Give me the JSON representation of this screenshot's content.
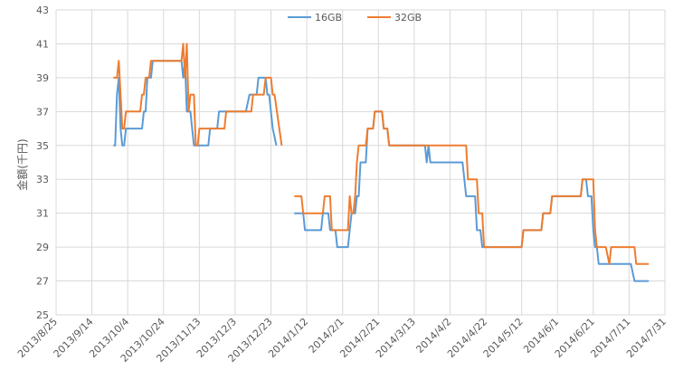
{
  "chart_data": {
    "type": "line",
    "title": "",
    "xlabel": "",
    "ylabel": "金額(千円)",
    "ylim": [
      25,
      43
    ],
    "yticks": [
      25,
      27,
      29,
      31,
      33,
      35,
      37,
      39,
      41,
      43
    ],
    "xlim": [
      "2013-08-25",
      "2014-07-31"
    ],
    "xtick_labels": [
      "2013/8/25",
      "2013/9/14",
      "2013/10/4",
      "2013/10/24",
      "2013/11/13",
      "2013/12/3",
      "2013/12/23",
      "2014/1/12",
      "2014/2/1",
      "2014/2/21",
      "2014/3/13",
      "2014/4/2",
      "2014/4/22",
      "2014/5/12",
      "2014/6/1",
      "2014/6/21",
      "2014/7/11",
      "2014/7/31"
    ],
    "xtick_dates": [
      "2013-08-25",
      "2013-09-14",
      "2013-10-04",
      "2013-10-24",
      "2013-11-13",
      "2013-12-03",
      "2013-12-23",
      "2014-01-12",
      "2014-02-01",
      "2014-02-21",
      "2014-03-13",
      "2014-04-02",
      "2014-04-22",
      "2014-05-12",
      "2014-06-01",
      "2014-06-21",
      "2014-07-11",
      "2014-07-31"
    ],
    "grid": true,
    "legend_position": "top-center",
    "series": [
      {
        "name": "16GB",
        "color": "#5B9BD5",
        "segments": [
          [
            [
              "2013-09-26",
              35
            ],
            [
              "2013-09-27",
              35
            ],
            [
              "2013-09-28",
              38
            ],
            [
              "2013-09-29",
              39
            ],
            [
              "2013-09-30",
              36
            ],
            [
              "2013-10-01",
              35
            ],
            [
              "2013-10-02",
              35
            ],
            [
              "2013-10-03",
              36
            ],
            [
              "2013-10-04",
              36
            ],
            [
              "2013-10-12",
              36
            ],
            [
              "2013-10-13",
              37
            ],
            [
              "2013-10-14",
              37
            ],
            [
              "2013-10-15",
              39
            ],
            [
              "2013-10-17",
              39
            ],
            [
              "2013-10-18",
              40
            ],
            [
              "2013-11-03",
              40
            ],
            [
              "2013-11-04",
              39
            ],
            [
              "2013-11-05",
              40
            ],
            [
              "2013-11-06",
              37
            ],
            [
              "2013-11-07",
              37
            ],
            [
              "2013-11-08",
              37
            ],
            [
              "2013-11-09",
              36
            ],
            [
              "2013-11-10",
              35
            ],
            [
              "2013-11-18",
              35
            ],
            [
              "2013-11-19",
              36
            ],
            [
              "2013-11-23",
              36
            ],
            [
              "2013-11-24",
              37
            ],
            [
              "2013-12-09",
              37
            ],
            [
              "2013-12-11",
              38
            ],
            [
              "2013-12-15",
              38
            ],
            [
              "2013-12-16",
              39
            ],
            [
              "2013-12-20",
              39
            ],
            [
              "2013-12-21",
              38
            ],
            [
              "2013-12-22",
              38
            ],
            [
              "2013-12-24",
              36
            ],
            [
              "2013-12-26",
              35
            ]
          ],
          [
            [
              "2014-01-05",
              31
            ],
            [
              "2014-01-10",
              31
            ],
            [
              "2014-01-11",
              30
            ],
            [
              "2014-01-20",
              30
            ],
            [
              "2014-01-21",
              31
            ],
            [
              "2014-01-24",
              31
            ],
            [
              "2014-01-25",
              30
            ],
            [
              "2014-01-28",
              30
            ],
            [
              "2014-01-29",
              29
            ],
            [
              "2014-02-04",
              29
            ],
            [
              "2014-02-05",
              30
            ],
            [
              "2014-02-06",
              31
            ],
            [
              "2014-02-07",
              31
            ],
            [
              "2014-02-08",
              31
            ],
            [
              "2014-02-09",
              32
            ],
            [
              "2014-02-10",
              32
            ],
            [
              "2014-02-11",
              34
            ],
            [
              "2014-02-14",
              34
            ],
            [
              "2014-02-15",
              36
            ],
            [
              "2014-02-18",
              36
            ],
            [
              "2014-02-19",
              37
            ],
            [
              "2014-02-23",
              37
            ],
            [
              "2014-02-24",
              36
            ],
            [
              "2014-02-26",
              36
            ],
            [
              "2014-02-27",
              35
            ],
            [
              "2014-03-19",
              35
            ],
            [
              "2014-03-20",
              34
            ],
            [
              "2014-03-21",
              35
            ],
            [
              "2014-03-22",
              34
            ],
            [
              "2014-04-09",
              34
            ],
            [
              "2014-04-10",
              33
            ],
            [
              "2014-04-11",
              32
            ],
            [
              "2014-04-16",
              32
            ],
            [
              "2014-04-17",
              30
            ],
            [
              "2014-04-19",
              30
            ],
            [
              "2014-04-20",
              29
            ],
            [
              "2014-05-12",
              29
            ],
            [
              "2014-05-13",
              30
            ],
            [
              "2014-05-23",
              30
            ],
            [
              "2014-05-24",
              31
            ],
            [
              "2014-05-28",
              31
            ],
            [
              "2014-05-29",
              32
            ],
            [
              "2014-06-14",
              32
            ],
            [
              "2014-06-15",
              33
            ],
            [
              "2014-06-17",
              33
            ],
            [
              "2014-06-18",
              32
            ],
            [
              "2014-06-20",
              32
            ],
            [
              "2014-06-21",
              30
            ],
            [
              "2014-06-22",
              29
            ],
            [
              "2014-06-23",
              29
            ],
            [
              "2014-06-24",
              28
            ],
            [
              "2014-07-12",
              28
            ],
            [
              "2014-07-14",
              27
            ],
            [
              "2014-07-22",
              27
            ]
          ]
        ]
      },
      {
        "name": "32GB",
        "color": "#ED7D31",
        "segments": [
          [
            [
              "2013-09-26",
              39
            ],
            [
              "2013-09-28",
              39
            ],
            [
              "2013-09-29",
              40
            ],
            [
              "2013-09-30",
              38
            ],
            [
              "2013-10-01",
              36
            ],
            [
              "2013-10-02",
              36
            ],
            [
              "2013-10-03",
              37
            ],
            [
              "2013-10-11",
              37
            ],
            [
              "2013-10-12",
              38
            ],
            [
              "2013-10-13",
              38
            ],
            [
              "2013-10-14",
              39
            ],
            [
              "2013-10-16",
              39
            ],
            [
              "2013-10-17",
              40
            ],
            [
              "2013-11-03",
              40
            ],
            [
              "2013-11-04",
              41
            ],
            [
              "2013-11-05",
              39
            ],
            [
              "2013-11-06",
              41
            ],
            [
              "2013-11-07",
              37
            ],
            [
              "2013-11-08",
              38
            ],
            [
              "2013-11-10",
              38
            ],
            [
              "2013-11-11",
              35
            ],
            [
              "2013-11-12",
              35
            ],
            [
              "2013-11-13",
              36
            ],
            [
              "2013-11-27",
              36
            ],
            [
              "2013-11-28",
              37
            ],
            [
              "2013-12-12",
              37
            ],
            [
              "2013-12-13",
              38
            ],
            [
              "2013-12-19",
              38
            ],
            [
              "2013-12-20",
              39
            ],
            [
              "2013-12-23",
              39
            ],
            [
              "2013-12-24",
              38
            ],
            [
              "2013-12-25",
              38
            ],
            [
              "2013-12-29",
              35
            ]
          ],
          [
            [
              "2014-01-05",
              32
            ],
            [
              "2014-01-09",
              32
            ],
            [
              "2014-01-10",
              31
            ],
            [
              "2014-01-21",
              31
            ],
            [
              "2014-01-22",
              32
            ],
            [
              "2014-01-25",
              32
            ],
            [
              "2014-01-26",
              30
            ],
            [
              "2014-02-04",
              30
            ],
            [
              "2014-02-05",
              32
            ],
            [
              "2014-02-06",
              31
            ],
            [
              "2014-02-07",
              31
            ],
            [
              "2014-02-08",
              32
            ],
            [
              "2014-02-09",
              34
            ],
            [
              "2014-02-10",
              35
            ],
            [
              "2014-02-14",
              35
            ],
            [
              "2014-02-15",
              36
            ],
            [
              "2014-02-18",
              36
            ],
            [
              "2014-02-19",
              37
            ],
            [
              "2014-02-23",
              37
            ],
            [
              "2014-02-24",
              36
            ],
            [
              "2014-02-26",
              36
            ],
            [
              "2014-02-27",
              35
            ],
            [
              "2014-04-11",
              35
            ],
            [
              "2014-04-12",
              33
            ],
            [
              "2014-04-17",
              33
            ],
            [
              "2014-04-18",
              31
            ],
            [
              "2014-04-20",
              31
            ],
            [
              "2014-04-21",
              29
            ],
            [
              "2014-05-12",
              29
            ],
            [
              "2014-05-13",
              30
            ],
            [
              "2014-05-23",
              30
            ],
            [
              "2014-05-24",
              31
            ],
            [
              "2014-05-28",
              31
            ],
            [
              "2014-05-29",
              32
            ],
            [
              "2014-06-14",
              32
            ],
            [
              "2014-06-15",
              33
            ],
            [
              "2014-06-21",
              33
            ],
            [
              "2014-06-22",
              30
            ],
            [
              "2014-06-23",
              29
            ],
            [
              "2014-06-28",
              29
            ],
            [
              "2014-06-30",
              28
            ],
            [
              "2014-07-01",
              29
            ],
            [
              "2014-07-14",
              29
            ],
            [
              "2014-07-15",
              28
            ],
            [
              "2014-07-22",
              28
            ]
          ]
        ]
      }
    ]
  }
}
